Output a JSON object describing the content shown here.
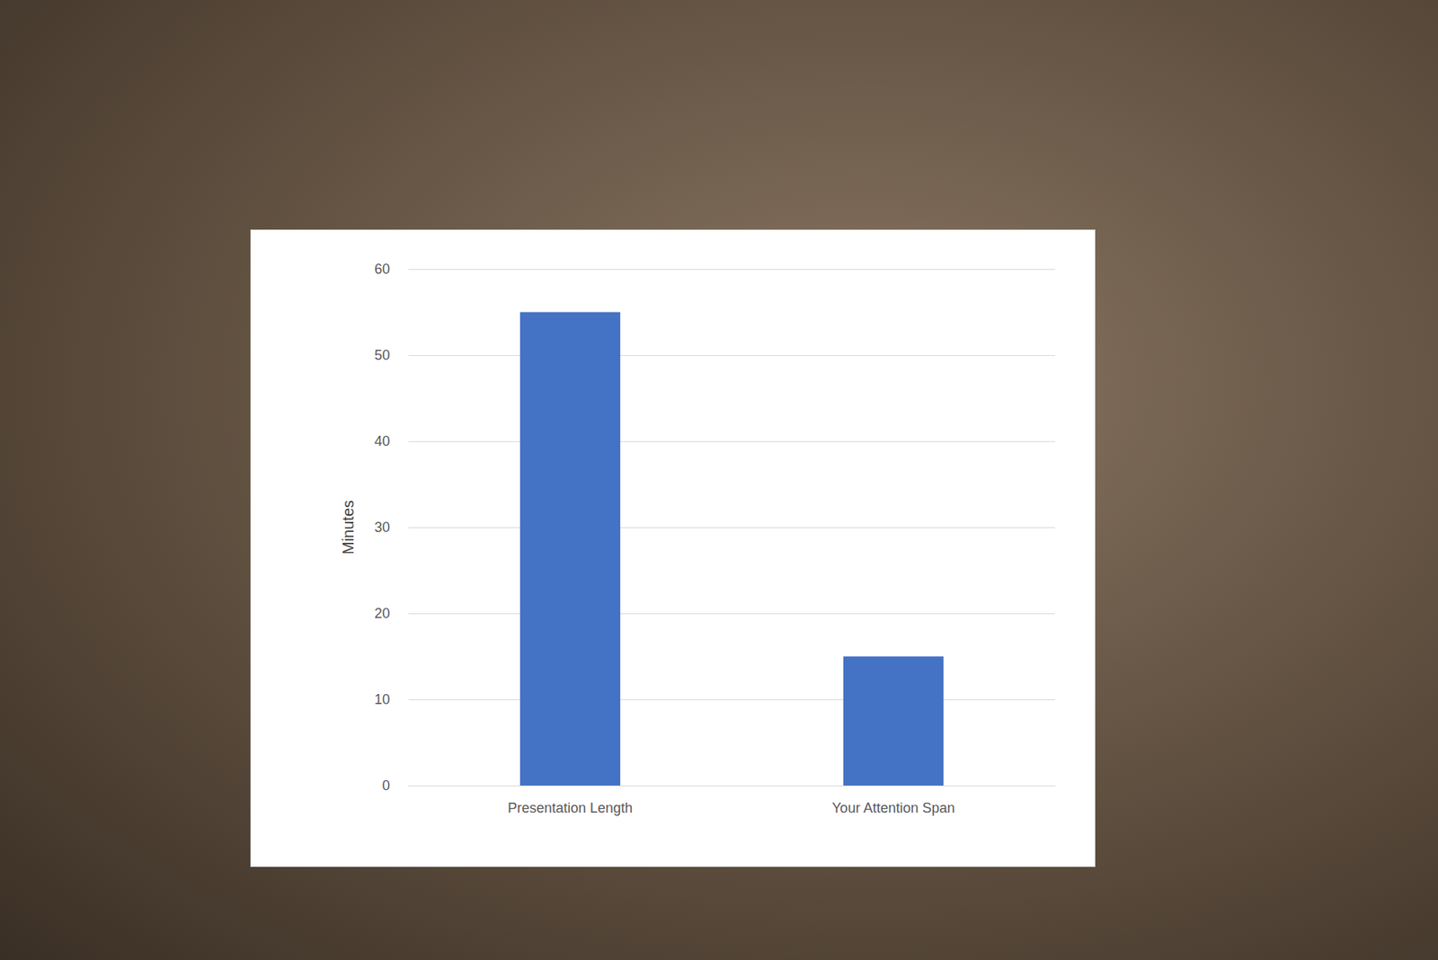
{
  "chart_data": {
    "type": "bar",
    "ylabel": "Minutes",
    "categories": [
      "Presentation Length",
      "Your Attention Span"
    ],
    "values": [
      55,
      15
    ],
    "color": "#4472c4",
    "ylim": [
      0,
      60
    ],
    "yticks": [
      0,
      10,
      20,
      30,
      40,
      50,
      60
    ],
    "grid": true
  }
}
